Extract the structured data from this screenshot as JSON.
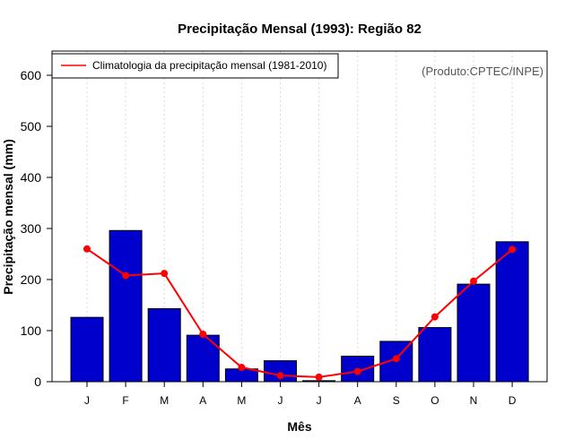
{
  "chart_data": {
    "type": "bar",
    "title": "Precipitação Mensal (1993): Região 82",
    "xlabel": "Mês",
    "ylabel": "Precipitação mensal (mm)",
    "ylim": [
      0,
      650
    ],
    "yticks": [
      0,
      100,
      200,
      300,
      400,
      500,
      600
    ],
    "categories": [
      "J",
      "F",
      "M",
      "A",
      "M",
      "J",
      "J",
      "A",
      "S",
      "O",
      "N",
      "D"
    ],
    "series": [
      {
        "name": "Precipitação mensal (1993)",
        "type": "bar",
        "color": "#0000cc",
        "values": [
          126,
          296,
          143,
          91,
          25,
          41,
          2,
          50,
          79,
          106,
          191,
          274
        ]
      },
      {
        "name": "Climatologia da precipitação mensal (1981-2010)",
        "type": "line",
        "color": "#ff0000",
        "values": [
          260,
          208,
          212,
          93,
          28,
          12,
          9,
          20,
          45,
          127,
          197,
          259
        ]
      }
    ],
    "legend": {
      "position": "top-left",
      "entries": [
        "Climatologia da precipitação mensal (1981-2010)"
      ]
    },
    "credit": "(Produto:CPTEC/INPE)",
    "grid": {
      "vertical_dotted": true
    }
  }
}
